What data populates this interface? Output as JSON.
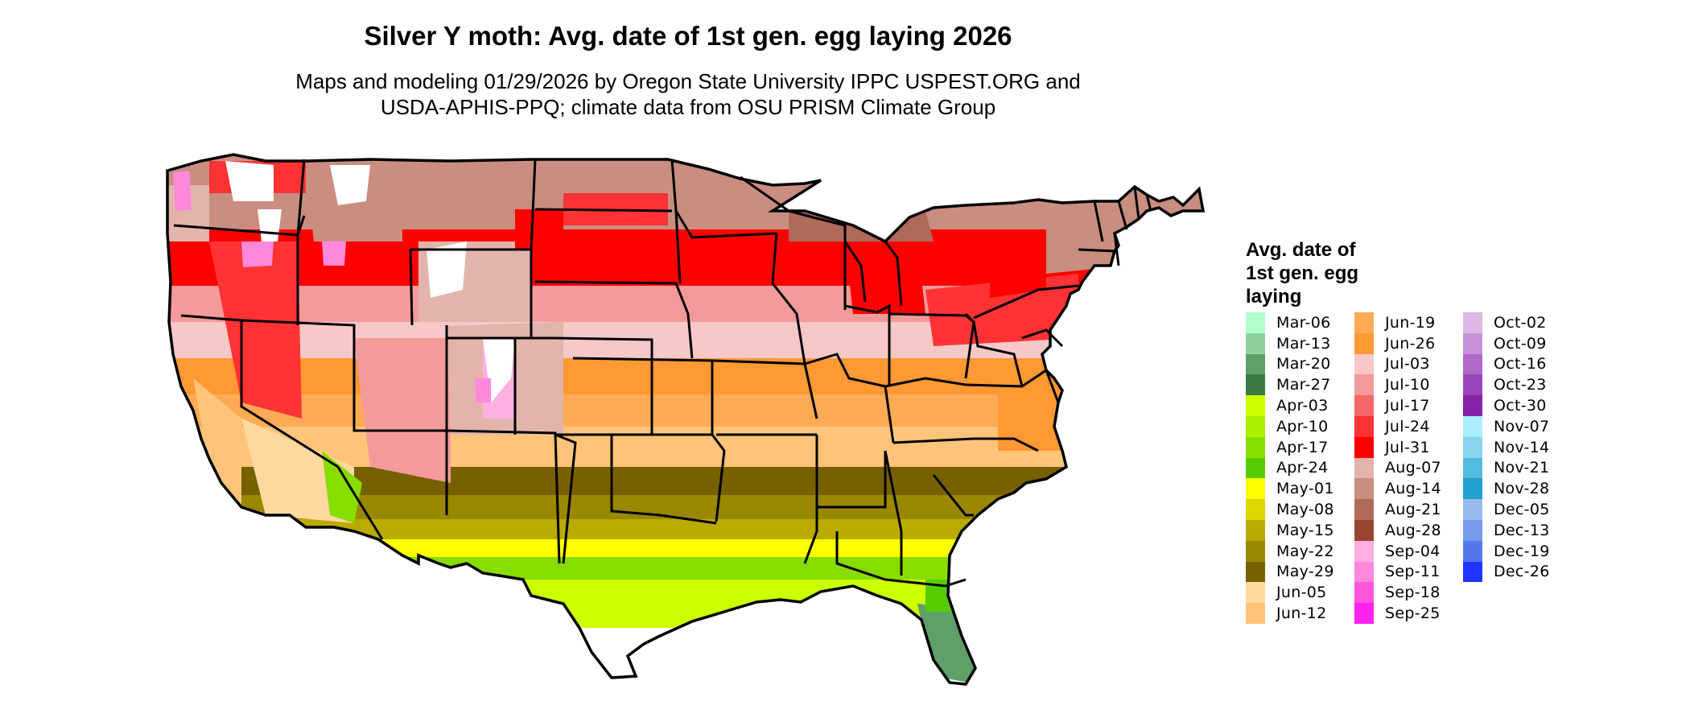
{
  "title": "Silver Y moth: Avg. date of 1st gen. egg laying 2026",
  "subtitle_line1": "Maps and modeling 01/29/2026 by Oregon State University IPPC USPEST.ORG and",
  "subtitle_line2": "USDA-APHIS-PPQ; climate data from OSU PRISM Climate Group",
  "legend": {
    "title_lines": [
      "Avg. date of",
      "1st gen. egg",
      "laying"
    ],
    "items": [
      {
        "label": "Mar-06",
        "color": "#b3ffcc"
      },
      {
        "label": "Mar-13",
        "color": "#8fd19e"
      },
      {
        "label": "Mar-20",
        "color": "#5fa06a"
      },
      {
        "label": "Mar-27",
        "color": "#3a7a42"
      },
      {
        "label": "Apr-03",
        "color": "#ccff00"
      },
      {
        "label": "Apr-10",
        "color": "#aaee00"
      },
      {
        "label": "Apr-17",
        "color": "#88dd00"
      },
      {
        "label": "Apr-24",
        "color": "#55cc00"
      },
      {
        "label": "May-01",
        "color": "#ffff00"
      },
      {
        "label": "May-08",
        "color": "#ddd600"
      },
      {
        "label": "May-15",
        "color": "#bbaa00"
      },
      {
        "label": "May-22",
        "color": "#998800"
      },
      {
        "label": "May-29",
        "color": "#776000"
      },
      {
        "label": "Jun-05",
        "color": "#ffd9a0"
      },
      {
        "label": "Jun-12",
        "color": "#ffc47a"
      },
      {
        "label": "Jun-19",
        "color": "#ffaa55"
      },
      {
        "label": "Jun-26",
        "color": "#ff9933"
      },
      {
        "label": "Jul-03",
        "color": "#f7c8c8"
      },
      {
        "label": "Jul-10",
        "color": "#f59a9a"
      },
      {
        "label": "Jul-17",
        "color": "#f56767"
      },
      {
        "label": "Jul-24",
        "color": "#ff3333"
      },
      {
        "label": "Jul-31",
        "color": "#ff0000"
      },
      {
        "label": "Aug-07",
        "color": "#e2b4ac"
      },
      {
        "label": "Aug-14",
        "color": "#c98e80"
      },
      {
        "label": "Aug-21",
        "color": "#b06a5a"
      },
      {
        "label": "Aug-28",
        "color": "#994433"
      },
      {
        "label": "Sep-04",
        "color": "#ffb0e0"
      },
      {
        "label": "Sep-11",
        "color": "#ff88dd"
      },
      {
        "label": "Sep-18",
        "color": "#ff55dd"
      },
      {
        "label": "Sep-25",
        "color": "#ff22ee"
      },
      {
        "label": "Oct-02",
        "color": "#dcb8e6"
      },
      {
        "label": "Oct-09",
        "color": "#c890d6"
      },
      {
        "label": "Oct-16",
        "color": "#b068c8"
      },
      {
        "label": "Oct-23",
        "color": "#9944bb"
      },
      {
        "label": "Oct-30",
        "color": "#8822aa"
      },
      {
        "label": "Nov-07",
        "color": "#aaeeff"
      },
      {
        "label": "Nov-14",
        "color": "#88d4f0"
      },
      {
        "label": "Nov-21",
        "color": "#55bbe0"
      },
      {
        "label": "Nov-28",
        "color": "#22a0d0"
      },
      {
        "label": "Dec-05",
        "color": "#99bbee"
      },
      {
        "label": "Dec-13",
        "color": "#7799ee"
      },
      {
        "label": "Dec-19",
        "color": "#5577ee"
      },
      {
        "label": "Dec-26",
        "color": "#2233ff"
      }
    ]
  }
}
